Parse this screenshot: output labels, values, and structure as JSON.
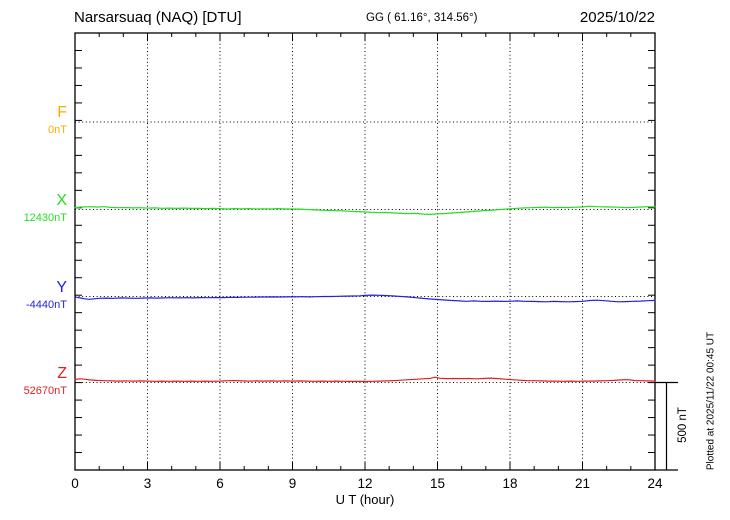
{
  "header": {
    "station": "Narsarsuaq (NAQ)  [DTU]",
    "coords": "GG ( 61.16°, 314.56°)",
    "date": "2025/10/22"
  },
  "footer_note": "Plotted at 2025/11/22 00:45 UT",
  "scale_bar": {
    "label": "500 nT"
  },
  "chart_data": {
    "type": "line",
    "title": "Narsarsuaq (NAQ) [DTU] magnetogram 2025/10/22",
    "xlabel": "U T (hour)",
    "xlim": [
      0,
      24
    ],
    "x_ticks": [
      0,
      3,
      6,
      9,
      12,
      15,
      18,
      21,
      24
    ],
    "x_minor_step_hours": 1,
    "y_minor_step_nT": 100,
    "scale_division_nT": 500,
    "grid": "dotted vertical lines every 3 h; dotted horizontal baseline per channel",
    "legend_position": "left margin channel labels",
    "series": [
      {
        "name": "F",
        "baseline_label": "0nT",
        "color": "#FFAA00",
        "points": []
      },
      {
        "name": "X",
        "baseline_label": "12430nT",
        "color": "#22DD22",
        "points": [
          [
            0,
            11
          ],
          [
            0.3,
            14
          ],
          [
            0.6,
            16
          ],
          [
            0.9,
            14
          ],
          [
            1.2,
            16
          ],
          [
            1.5,
            12
          ],
          [
            1.8,
            10
          ],
          [
            2.1,
            11
          ],
          [
            2.4,
            9
          ],
          [
            2.7,
            10
          ],
          [
            3,
            8
          ],
          [
            3.3,
            9
          ],
          [
            3.6,
            7
          ],
          [
            3.9,
            8
          ],
          [
            4.2,
            6
          ],
          [
            4.5,
            8
          ],
          [
            4.8,
            6
          ],
          [
            5.1,
            7
          ],
          [
            5.4,
            5
          ],
          [
            5.7,
            6
          ],
          [
            6,
            5
          ],
          [
            6.3,
            3
          ],
          [
            6.6,
            5
          ],
          [
            6.9,
            4
          ],
          [
            7.2,
            5
          ],
          [
            7.5,
            3
          ],
          [
            7.8,
            4
          ],
          [
            8.1,
            3
          ],
          [
            8.4,
            5
          ],
          [
            8.7,
            3
          ],
          [
            9,
            3
          ],
          [
            9.3,
            2
          ],
          [
            9.6,
            0
          ],
          [
            9.9,
            -2
          ],
          [
            10.2,
            -4
          ],
          [
            10.5,
            -5
          ],
          [
            10.8,
            -7
          ],
          [
            11.1,
            -8
          ],
          [
            11.4,
            -10
          ],
          [
            11.7,
            -12
          ],
          [
            12,
            -14
          ],
          [
            12.3,
            -16
          ],
          [
            12.6,
            -18
          ],
          [
            12.9,
            -17
          ],
          [
            13.2,
            -20
          ],
          [
            13.5,
            -22
          ],
          [
            13.8,
            -24
          ],
          [
            14.1,
            -22
          ],
          [
            14.4,
            -26
          ],
          [
            14.7,
            -28
          ],
          [
            15,
            -25
          ],
          [
            15.3,
            -23
          ],
          [
            15.6,
            -20
          ],
          [
            15.9,
            -17
          ],
          [
            16.2,
            -14
          ],
          [
            16.5,
            -11
          ],
          [
            16.8,
            -8
          ],
          [
            17.1,
            -5
          ],
          [
            17.4,
            -2
          ],
          [
            17.7,
            1
          ],
          [
            18,
            4
          ],
          [
            18.3,
            7
          ],
          [
            18.6,
            9
          ],
          [
            18.9,
            10
          ],
          [
            19.2,
            12
          ],
          [
            19.5,
            13
          ],
          [
            19.8,
            11
          ],
          [
            20.1,
            12
          ],
          [
            20.4,
            11
          ],
          [
            20.7,
            13
          ],
          [
            21,
            14
          ],
          [
            21.3,
            19
          ],
          [
            21.6,
            16
          ],
          [
            21.9,
            15
          ],
          [
            22.2,
            14
          ],
          [
            22.5,
            13
          ],
          [
            22.8,
            11
          ],
          [
            23.1,
            12
          ],
          [
            23.4,
            14
          ],
          [
            23.7,
            16
          ],
          [
            24,
            14
          ]
        ]
      },
      {
        "name": "Y",
        "baseline_label": "-4440nT",
        "color": "#2222DD",
        "points": [
          [
            0,
            -2
          ],
          [
            0.2,
            -8
          ],
          [
            0.4,
            -13
          ],
          [
            0.6,
            -16
          ],
          [
            0.8,
            -13
          ],
          [
            1,
            -10
          ],
          [
            1.3,
            -9
          ],
          [
            1.6,
            -10
          ],
          [
            1.9,
            -8
          ],
          [
            2.2,
            -9
          ],
          [
            2.5,
            -10
          ],
          [
            2.8,
            -9
          ],
          [
            3.1,
            -8
          ],
          [
            3.4,
            -9
          ],
          [
            3.7,
            -8
          ],
          [
            4,
            -7
          ],
          [
            4.3,
            -8
          ],
          [
            4.6,
            -7
          ],
          [
            4.9,
            -8
          ],
          [
            5.2,
            -6
          ],
          [
            5.5,
            -7
          ],
          [
            5.8,
            -6
          ],
          [
            6.1,
            -6
          ],
          [
            6.4,
            -5
          ],
          [
            6.7,
            -5
          ],
          [
            7,
            -4
          ],
          [
            7.3,
            -4
          ],
          [
            7.6,
            -3
          ],
          [
            7.9,
            -3
          ],
          [
            8.2,
            -2
          ],
          [
            8.5,
            -3
          ],
          [
            8.8,
            -2
          ],
          [
            9.1,
            -2
          ],
          [
            9.4,
            -1
          ],
          [
            9.7,
            -2
          ],
          [
            10,
            -1
          ],
          [
            10.3,
            0
          ],
          [
            10.6,
            0
          ],
          [
            10.9,
            1
          ],
          [
            11.2,
            2
          ],
          [
            11.5,
            3
          ],
          [
            11.8,
            4
          ],
          [
            12,
            6
          ],
          [
            12.3,
            8
          ],
          [
            12.6,
            7
          ],
          [
            12.9,
            5
          ],
          [
            13.2,
            3
          ],
          [
            13.5,
            0
          ],
          [
            13.8,
            -3
          ],
          [
            14.1,
            -7
          ],
          [
            14.4,
            -11
          ],
          [
            14.7,
            -14
          ],
          [
            15,
            -17
          ],
          [
            15.3,
            -20
          ],
          [
            15.6,
            -23
          ],
          [
            15.9,
            -25
          ],
          [
            16.2,
            -27
          ],
          [
            16.5,
            -25
          ],
          [
            16.8,
            -27
          ],
          [
            17.1,
            -28
          ],
          [
            17.4,
            -26
          ],
          [
            17.7,
            -28
          ],
          [
            18,
            -27
          ],
          [
            18.3,
            -25
          ],
          [
            18.6,
            -27
          ],
          [
            18.9,
            -28
          ],
          [
            19.2,
            -29
          ],
          [
            19.5,
            -30
          ],
          [
            19.8,
            -28
          ],
          [
            20.1,
            -29
          ],
          [
            20.4,
            -30
          ],
          [
            20.7,
            -29
          ],
          [
            21,
            -27
          ],
          [
            21.3,
            -23
          ],
          [
            21.6,
            -21
          ],
          [
            21.9,
            -24
          ],
          [
            22.2,
            -27
          ],
          [
            22.5,
            -30
          ],
          [
            22.8,
            -29
          ],
          [
            23.1,
            -27
          ],
          [
            23.4,
            -26
          ],
          [
            23.7,
            -24
          ],
          [
            24,
            -22
          ]
        ]
      },
      {
        "name": "Z",
        "baseline_label": "52670nT",
        "color": "#DD2222",
        "points": [
          [
            0,
            17
          ],
          [
            0.2,
            21
          ],
          [
            0.4,
            19
          ],
          [
            0.6,
            15
          ],
          [
            0.9,
            12
          ],
          [
            1.2,
            10
          ],
          [
            1.5,
            9
          ],
          [
            1.8,
            8
          ],
          [
            2.1,
            9
          ],
          [
            2.4,
            8
          ],
          [
            2.7,
            9
          ],
          [
            3,
            8
          ],
          [
            3.3,
            7
          ],
          [
            3.6,
            8
          ],
          [
            3.9,
            7
          ],
          [
            4.2,
            8
          ],
          [
            4.5,
            7
          ],
          [
            4.8,
            8
          ],
          [
            5.1,
            7
          ],
          [
            5.4,
            8
          ],
          [
            5.7,
            7
          ],
          [
            6,
            8
          ],
          [
            6.3,
            10
          ],
          [
            6.6,
            11
          ],
          [
            6.9,
            9
          ],
          [
            7.2,
            8
          ],
          [
            7.5,
            9
          ],
          [
            7.8,
            8
          ],
          [
            8.1,
            9
          ],
          [
            8.4,
            8
          ],
          [
            8.7,
            9
          ],
          [
            9,
            8
          ],
          [
            9.3,
            9
          ],
          [
            9.6,
            8
          ],
          [
            9.9,
            7
          ],
          [
            10.2,
            8
          ],
          [
            10.5,
            7
          ],
          [
            10.8,
            8
          ],
          [
            11.1,
            7
          ],
          [
            11.4,
            6
          ],
          [
            11.7,
            7
          ],
          [
            12,
            6
          ],
          [
            12.3,
            7
          ],
          [
            12.6,
            8
          ],
          [
            12.9,
            9
          ],
          [
            13.2,
            11
          ],
          [
            13.5,
            13
          ],
          [
            13.8,
            16
          ],
          [
            14.1,
            18
          ],
          [
            14.4,
            21
          ],
          [
            14.7,
            24
          ],
          [
            14.9,
            30
          ],
          [
            15.1,
            24
          ],
          [
            15.4,
            22
          ],
          [
            15.7,
            23
          ],
          [
            16,
            22
          ],
          [
            16.3,
            23
          ],
          [
            16.6,
            21
          ],
          [
            16.9,
            23
          ],
          [
            17.2,
            25
          ],
          [
            17.5,
            22
          ],
          [
            17.8,
            19
          ],
          [
            18.1,
            16
          ],
          [
            18.4,
            13
          ],
          [
            18.7,
            11
          ],
          [
            19,
            10
          ],
          [
            19.3,
            9
          ],
          [
            19.6,
            8
          ],
          [
            19.9,
            8
          ],
          [
            20.2,
            7
          ],
          [
            20.5,
            8
          ],
          [
            20.8,
            7
          ],
          [
            21.1,
            8
          ],
          [
            21.4,
            8
          ],
          [
            21.7,
            9
          ],
          [
            22,
            10
          ],
          [
            22.3,
            12
          ],
          [
            22.6,
            15
          ],
          [
            22.9,
            16
          ],
          [
            23.1,
            12
          ],
          [
            23.4,
            10
          ],
          [
            23.7,
            9
          ],
          [
            24,
            8
          ]
        ]
      }
    ]
  }
}
